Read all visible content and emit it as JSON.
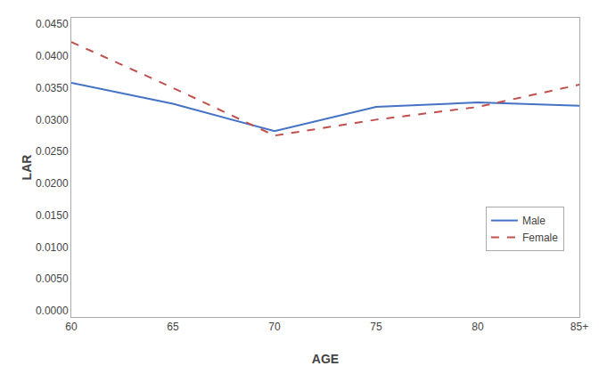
{
  "chart_data": {
    "type": "line",
    "categories": [
      "60",
      "65",
      "70",
      "75",
      "80",
      "85+"
    ],
    "xlabel": "AGE",
    "ylabel": "LAR",
    "series": [
      {
        "name": "Male",
        "color": "#4472C4",
        "line_style": "solid",
        "values": [
          0.0358,
          0.0325,
          0.0282,
          0.032,
          0.0327,
          0.0322
        ]
      },
      {
        "name": "Female",
        "color": "#C0504D",
        "line_style": "dashed",
        "values": [
          0.0422,
          0.035,
          0.0275,
          0.03,
          0.032,
          0.0355
        ]
      }
    ],
    "ylim": [
      -0.001,
      0.046
    ],
    "yticks": [
      {
        "value": 0.0,
        "label": "0.0000"
      },
      {
        "value": 0.005,
        "label": "0.0050"
      },
      {
        "value": 0.01,
        "label": "0.0100"
      },
      {
        "value": 0.015,
        "label": "0.0150"
      },
      {
        "value": 0.02,
        "label": "0.0200"
      },
      {
        "value": 0.025,
        "label": "0.0250"
      },
      {
        "value": 0.03,
        "label": "0.0300"
      },
      {
        "value": 0.035,
        "label": "0.0350"
      },
      {
        "value": 0.04,
        "label": "0.0400"
      },
      {
        "value": 0.045,
        "label": "0.0450"
      }
    ],
    "grid": false,
    "legend": "lower right"
  }
}
